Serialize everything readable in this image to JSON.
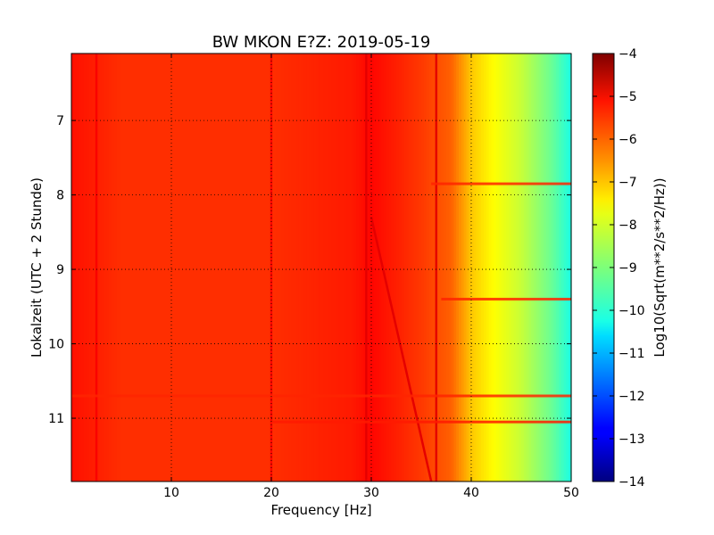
{
  "chart_data": {
    "type": "heatmap",
    "title": "BW MKON E?Z: 2019-05-19",
    "xlabel": "Frequency [Hz]",
    "ylabel": "Lokalzeit (UTC + 2 Stunde)",
    "colorbar_label": "Log10(Sqrt(m**2/s**2/Hz))",
    "xlim": [
      0,
      50
    ],
    "ylim": [
      6.1,
      11.85
    ],
    "y_inverted": true,
    "clim": [
      -14,
      -4
    ],
    "colormap": "jet",
    "grid": true,
    "x_ticks": [
      10,
      20,
      30,
      40,
      50
    ],
    "x_tick_labels": [
      "10",
      "20",
      "30",
      "40",
      "50"
    ],
    "y_ticks": [
      7,
      8,
      9,
      10,
      11
    ],
    "y_tick_labels": [
      "7",
      "8",
      "9",
      "10",
      "11"
    ],
    "colorbar_ticks": [
      -4,
      -5,
      -6,
      -7,
      -8,
      -9,
      -10,
      -11,
      -12,
      -13,
      -14
    ],
    "colorbar_tick_labels": [
      "−4",
      "−5",
      "−6",
      "−7",
      "−8",
      "−9",
      "−10",
      "−11",
      "−12",
      "−13",
      "−14"
    ],
    "spectral_profile": {
      "frequency_hz": [
        0,
        5,
        10,
        20,
        28,
        30,
        35,
        38,
        40,
        42,
        45,
        48,
        50
      ],
      "log10_amplitude": [
        -5.4,
        -5.7,
        -5.7,
        -5.7,
        -5.5,
        -5.3,
        -5.8,
        -6.2,
        -7.2,
        -7.7,
        -8.3,
        -9.2,
        -10.0
      ]
    },
    "features": [
      {
        "type": "vertical_line",
        "frequency_hz": 2.5,
        "log10_amplitude": -5.2
      },
      {
        "type": "vertical_line",
        "frequency_hz": 20,
        "log10_amplitude": -5.3
      },
      {
        "type": "vertical_line",
        "frequency_hz": 29.5,
        "log10_amplitude": -5.0
      },
      {
        "type": "vertical_line",
        "frequency_hz": 36.5,
        "log10_amplitude": -5.0
      },
      {
        "type": "drifting_line",
        "start": [
          30,
          8.3
        ],
        "end": [
          36,
          11.85
        ],
        "log10_amplitude": -5.0
      },
      {
        "type": "horizontal_band",
        "time": 7.85,
        "frequency_range": [
          36,
          50
        ],
        "log10_amplitude": -5.6
      },
      {
        "type": "horizontal_band",
        "time": 9.4,
        "frequency_range": [
          37,
          50
        ],
        "log10_amplitude": -5.6
      },
      {
        "type": "horizontal_band",
        "time": 10.7,
        "frequency_range": [
          0,
          50
        ],
        "log10_amplitude": -5.6
      },
      {
        "type": "horizontal_band",
        "time": 11.05,
        "frequency_range": [
          20,
          50
        ],
        "log10_amplitude": -5.5
      }
    ]
  }
}
